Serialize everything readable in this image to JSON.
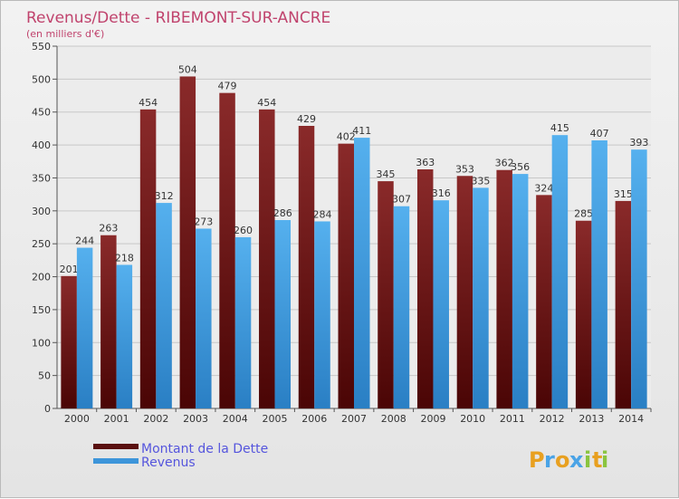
{
  "chart_data": {
    "type": "bar",
    "title": "Revenus/Dette - RIBEMONT-SUR-ANCRE",
    "subtitle": "(en milliers d'€)",
    "categories": [
      "2000",
      "2001",
      "2002",
      "2003",
      "2004",
      "2005",
      "2006",
      "2007",
      "2008",
      "2009",
      "2010",
      "2011",
      "2012",
      "2013",
      "2014"
    ],
    "series": [
      {
        "name": "Montant de la Dette",
        "color": "#7a1818",
        "values": [
          201,
          263,
          454,
          504,
          479,
          454,
          429,
          402,
          345,
          363,
          353,
          362,
          324,
          285,
          315
        ]
      },
      {
        "name": "Revenus",
        "color": "#4aa3e6",
        "values": [
          244,
          218,
          312,
          273,
          260,
          286,
          284,
          411,
          307,
          316,
          335,
          356,
          415,
          407,
          393
        ]
      }
    ],
    "ylim": [
      0,
      550
    ],
    "yticks": [
      0,
      50,
      100,
      150,
      200,
      250,
      300,
      350,
      400,
      450,
      500,
      550
    ],
    "grid": true,
    "legend": "bottom-left"
  },
  "logo": {
    "text": "Proxiti",
    "letters": [
      "P",
      "r",
      "o",
      "x",
      "i",
      "t",
      "i"
    ],
    "colors": [
      "#e8a020",
      "#4aa3e6",
      "#e8a020",
      "#4aa3e6",
      "#8ac43f",
      "#e8a020",
      "#8ac43f"
    ]
  }
}
